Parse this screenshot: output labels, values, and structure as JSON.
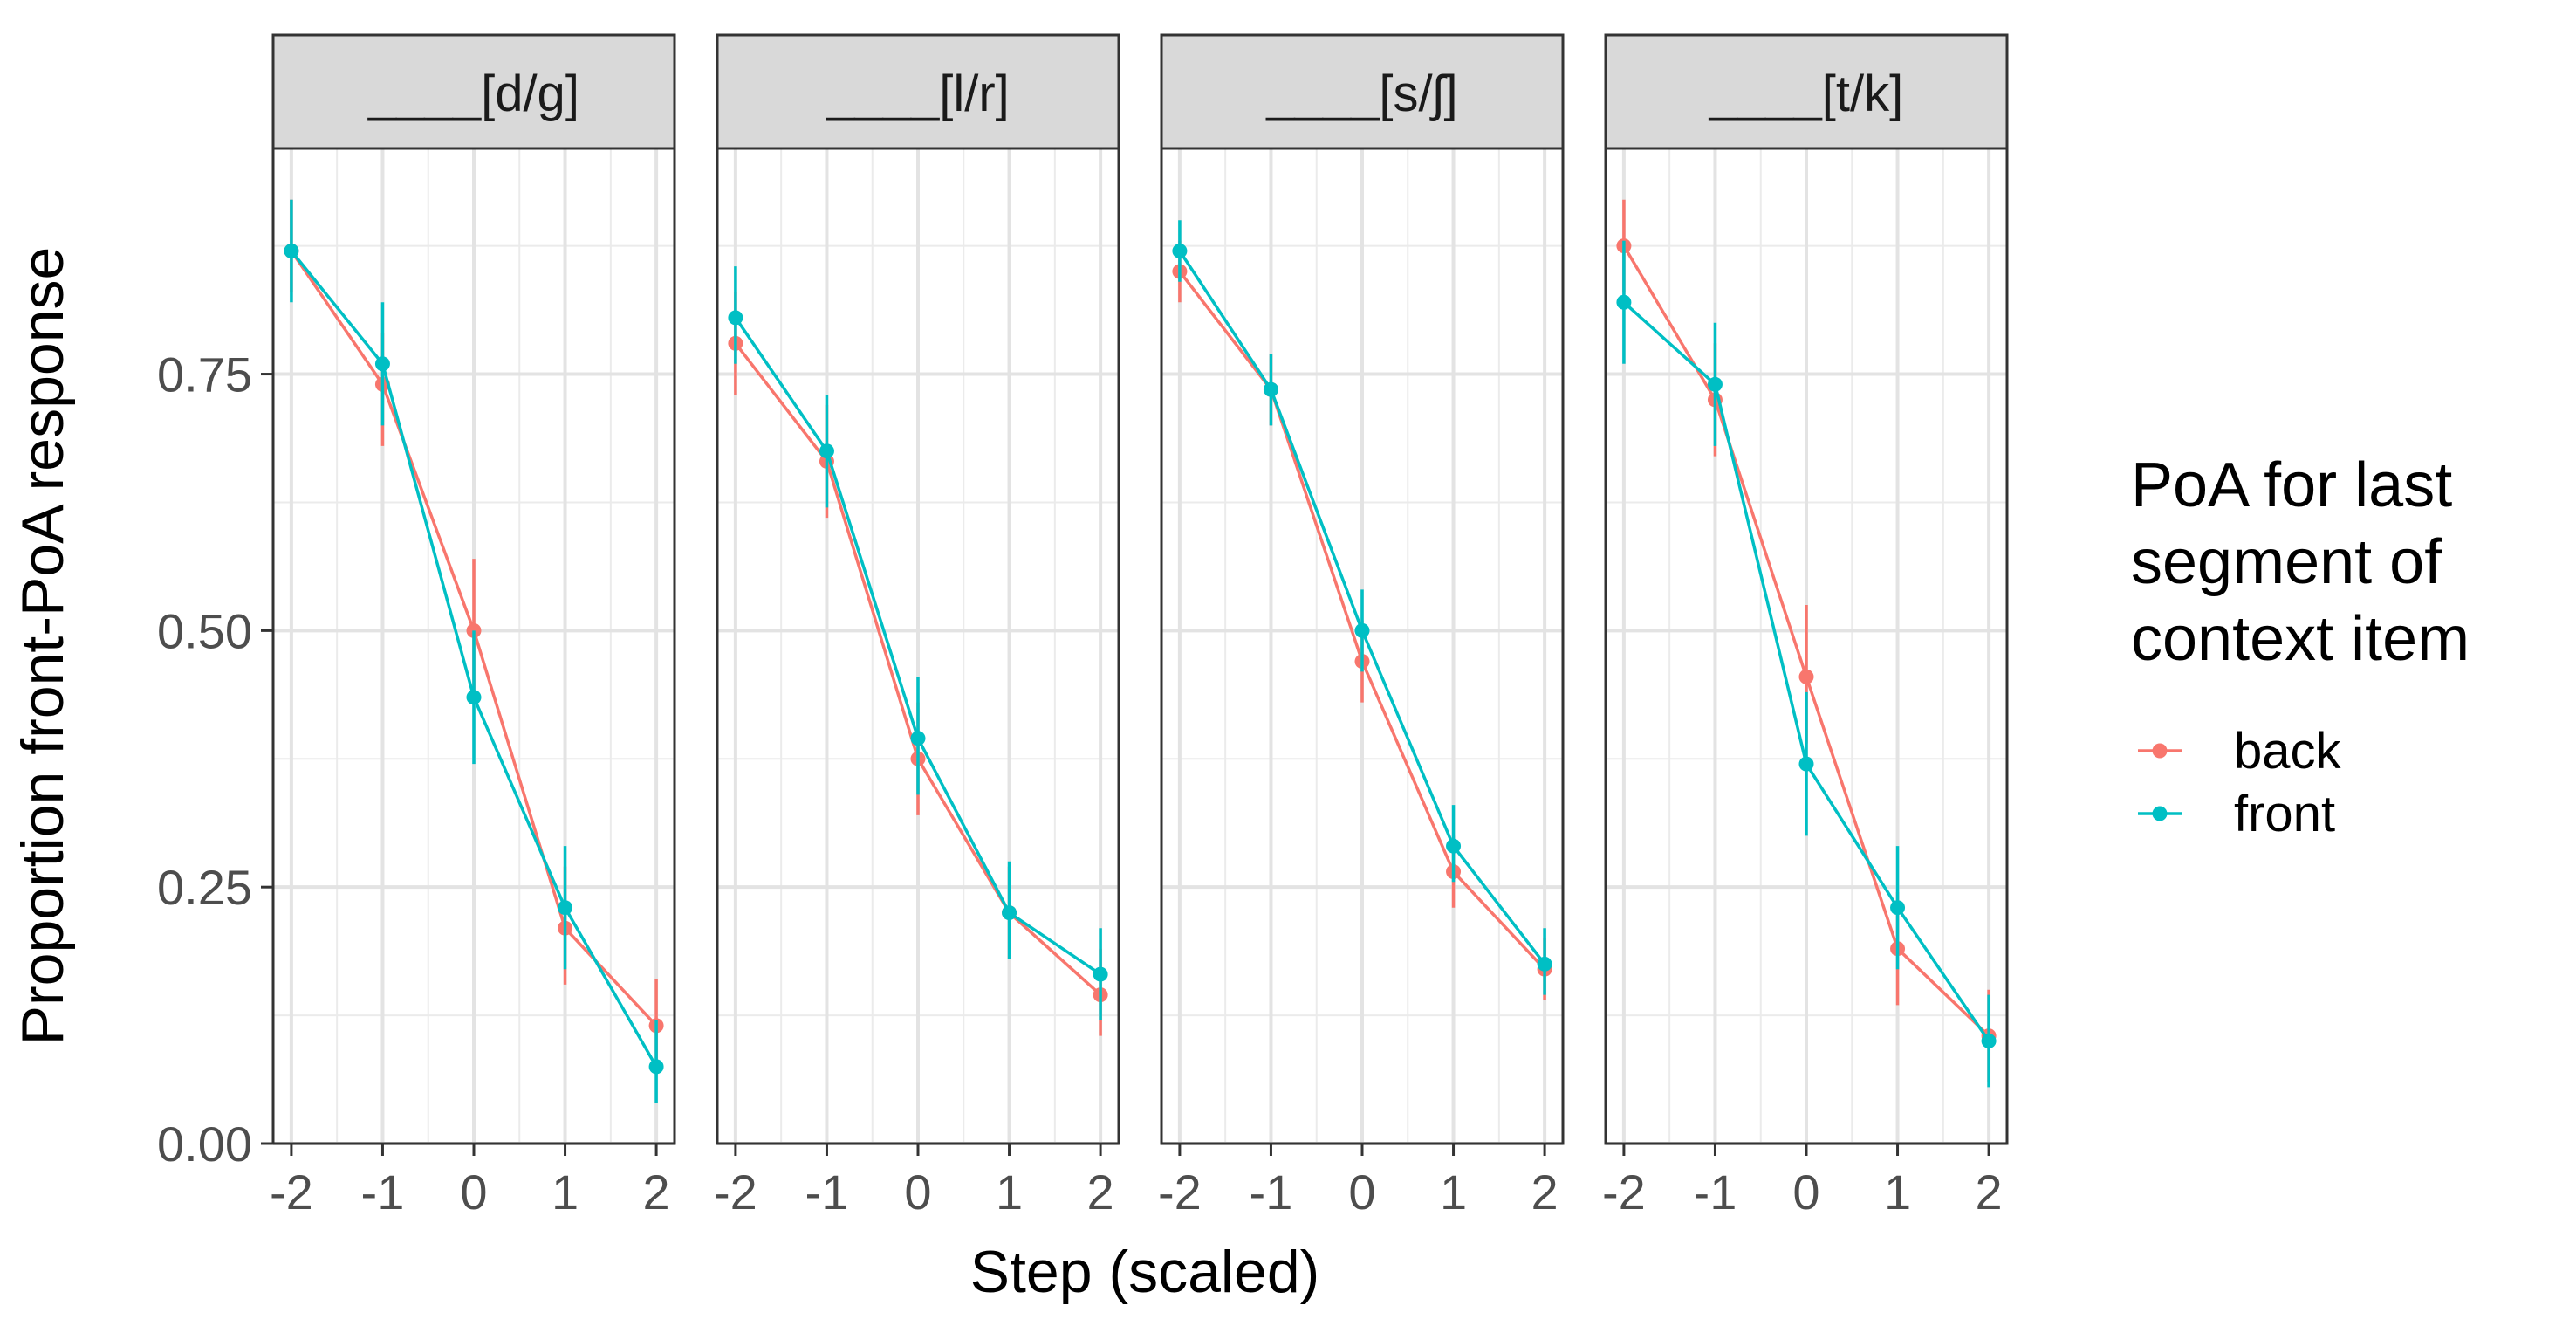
{
  "chart_data": {
    "type": "line",
    "y_axis_title": "Proportion front-PoA response",
    "x_axis_title": "Step (scaled)",
    "x_ticks": [
      "-2",
      "-1",
      "0",
      "1",
      "2"
    ],
    "x_values": [
      -2,
      -1,
      0,
      1,
      2
    ],
    "y_ticks": [
      "0.00",
      "0.25",
      "0.50",
      "0.75"
    ],
    "y_tick_values": [
      0,
      0.25,
      0.5,
      0.75
    ],
    "ylim": [
      0,
      0.97
    ],
    "xlim": [
      -2.2,
      2.2
    ],
    "grid": true,
    "legend": {
      "title_lines": [
        "PoA for last",
        "segment of",
        "context item"
      ],
      "placement": "right",
      "entries": [
        {
          "name": "back",
          "color": "#F8766D"
        },
        {
          "name": "front",
          "color": "#00BFC4"
        }
      ]
    },
    "series_colors": {
      "back": "#F8766D",
      "front": "#00BFC4"
    },
    "panels": [
      {
        "label": "____[d/g]",
        "series": [
          {
            "name": "back",
            "y": [
              0.87,
              0.74,
              0.5,
              0.21,
              0.115
            ],
            "lo": [
              0.83,
              0.68,
              0.43,
              0.155,
              0.07
            ],
            "hi": [
              0.92,
              0.79,
              0.57,
              0.27,
              0.16
            ]
          },
          {
            "name": "front",
            "y": [
              0.87,
              0.76,
              0.435,
              0.23,
              0.075
            ],
            "lo": [
              0.82,
              0.7,
              0.37,
              0.17,
              0.04
            ],
            "hi": [
              0.92,
              0.82,
              0.5,
              0.29,
              0.12
            ]
          }
        ]
      },
      {
        "label": "____[l/r]",
        "series": [
          {
            "name": "back",
            "y": [
              0.78,
              0.665,
              0.375,
              0.225,
              0.145
            ],
            "lo": [
              0.73,
              0.61,
              0.32,
              0.18,
              0.105
            ],
            "hi": [
              0.83,
              0.72,
              0.43,
              0.27,
              0.19
            ]
          },
          {
            "name": "front",
            "y": [
              0.805,
              0.675,
              0.395,
              0.225,
              0.165
            ],
            "lo": [
              0.76,
              0.62,
              0.34,
              0.18,
              0.12
            ],
            "hi": [
              0.855,
              0.73,
              0.455,
              0.275,
              0.21
            ]
          }
        ]
      },
      {
        "label": "____[s/ʃ]",
        "series": [
          {
            "name": "back",
            "y": [
              0.85,
              0.735,
              0.47,
              0.265,
              0.17
            ],
            "lo": [
              0.82,
              0.7,
              0.43,
              0.23,
              0.14
            ],
            "hi": [
              0.88,
              0.77,
              0.51,
              0.3,
              0.2
            ]
          },
          {
            "name": "front",
            "y": [
              0.87,
              0.735,
              0.5,
              0.29,
              0.175
            ],
            "lo": [
              0.84,
              0.7,
              0.46,
              0.255,
              0.145
            ],
            "hi": [
              0.9,
              0.77,
              0.54,
              0.33,
              0.21
            ]
          }
        ]
      },
      {
        "label": "____[t/k]",
        "series": [
          {
            "name": "back",
            "y": [
              0.875,
              0.725,
              0.455,
              0.19,
              0.105
            ],
            "lo": [
              0.83,
              0.67,
              0.39,
              0.135,
              0.06
            ],
            "hi": [
              0.92,
              0.78,
              0.525,
              0.245,
              0.15
            ]
          },
          {
            "name": "front",
            "y": [
              0.82,
              0.74,
              0.37,
              0.23,
              0.1
            ],
            "lo": [
              0.76,
              0.68,
              0.3,
              0.17,
              0.055
            ],
            "hi": [
              0.88,
              0.8,
              0.44,
              0.29,
              0.145
            ]
          }
        ]
      }
    ]
  }
}
